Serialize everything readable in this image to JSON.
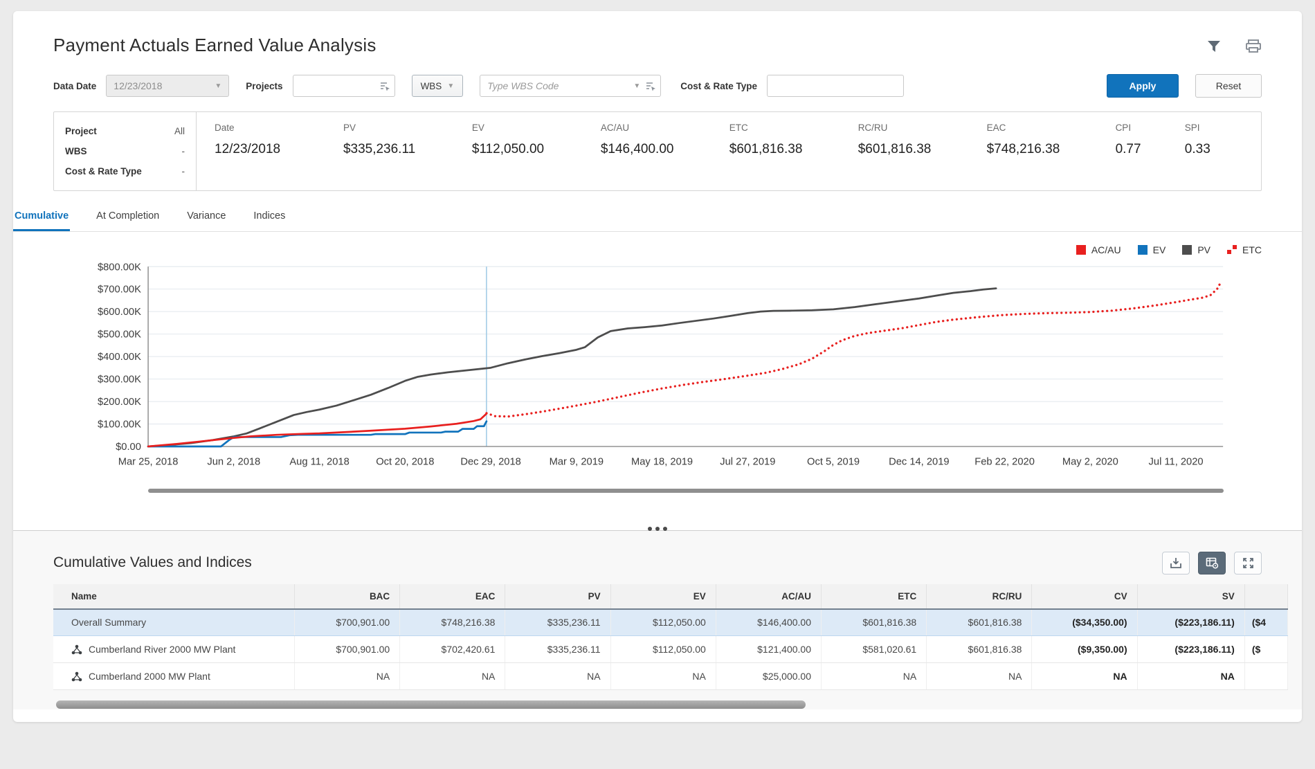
{
  "header": {
    "title": "Payment Actuals Earned Value Analysis"
  },
  "filters": {
    "data_date_label": "Data Date",
    "data_date_value": "12/23/2018",
    "projects_label": "Projects",
    "projects_value": "",
    "wbs_button_label": "WBS",
    "wbs_code_placeholder": "Type WBS Code",
    "cost_rate_label": "Cost & Rate Type",
    "cost_rate_value": "",
    "apply_label": "Apply",
    "reset_label": "Reset"
  },
  "summary_panel": {
    "left_rows": [
      {
        "label": "Project",
        "value": "All"
      },
      {
        "label": "WBS",
        "value": "-"
      },
      {
        "label": "Cost & Rate Type",
        "value": "-"
      }
    ],
    "metrics": [
      {
        "label": "Date",
        "value": "12/23/2018"
      },
      {
        "label": "PV",
        "value": "$335,236.11"
      },
      {
        "label": "EV",
        "value": "$112,050.00"
      },
      {
        "label": "AC/AU",
        "value": "$146,400.00"
      },
      {
        "label": "ETC",
        "value": "$601,816.38"
      },
      {
        "label": "RC/RU",
        "value": "$601,816.38"
      },
      {
        "label": "EAC",
        "value": "$748,216.38"
      },
      {
        "label": "CPI",
        "value": "0.77"
      },
      {
        "label": "SPI",
        "value": "0.33"
      }
    ]
  },
  "tabs": [
    {
      "label": "Cumulative",
      "active": true
    },
    {
      "label": "At Completion",
      "active": false
    },
    {
      "label": "Variance",
      "active": false
    },
    {
      "label": "Indices",
      "active": false
    }
  ],
  "chart_data": {
    "type": "line",
    "title": "Cumulative earned value curves",
    "ylabel": "",
    "xlabel": "",
    "ylim": [
      0,
      800000
    ],
    "values_unit": "USD thousands (K)",
    "grid": true,
    "legend_position": "top-right",
    "y_tick_labels": [
      "$800.00K",
      "$700.00K",
      "$600.00K",
      "$500.00K",
      "$400.00K",
      "$300.00K",
      "$200.00K",
      "$100.00K",
      "$0.00"
    ],
    "x_tick_labels": [
      "Mar 25, 2018",
      "Jun 2, 2018",
      "Aug 11, 2018",
      "Oct 20, 2018",
      "Dec 29, 2018",
      "Mar 9, 2019",
      "May 18, 2019",
      "Jul 27, 2019",
      "Oct 5, 2019",
      "Dec 14, 2019",
      "Feb 22, 2020",
      "May 2, 2020",
      "Jul 11, 2020"
    ],
    "x_unit": "tick index (ticks are 70 days apart)",
    "x_max": 12.55,
    "data_date_x": 3.95,
    "legend": [
      {
        "name": "AC/AU",
        "color": "#e8201f",
        "style": "solid"
      },
      {
        "name": "EV",
        "color": "#1173bc",
        "style": "solid"
      },
      {
        "name": "PV",
        "color": "#4d4d4d",
        "style": "solid"
      },
      {
        "name": "ETC",
        "color": "#e8201f",
        "style": "dotted"
      }
    ],
    "series": [
      {
        "name": "PV",
        "color": "#4d4d4d",
        "style": "solid",
        "points": [
          [
            0,
            0
          ],
          [
            0.25,
            7
          ],
          [
            0.5,
            15
          ],
          [
            0.75,
            28
          ],
          [
            1,
            45
          ],
          [
            1.15,
            58
          ],
          [
            1.3,
            80
          ],
          [
            1.5,
            110
          ],
          [
            1.7,
            140
          ],
          [
            1.85,
            153
          ],
          [
            2,
            164
          ],
          [
            2.2,
            182
          ],
          [
            2.4,
            206
          ],
          [
            2.6,
            230
          ],
          [
            2.8,
            260
          ],
          [
            3,
            292
          ],
          [
            3.15,
            310
          ],
          [
            3.3,
            320
          ],
          [
            3.5,
            330
          ],
          [
            3.75,
            340
          ],
          [
            4,
            350
          ],
          [
            4.2,
            370
          ],
          [
            4.4,
            387
          ],
          [
            4.6,
            402
          ],
          [
            4.8,
            415
          ],
          [
            5,
            430
          ],
          [
            5.1,
            442
          ],
          [
            5.25,
            485
          ],
          [
            5.4,
            513
          ],
          [
            5.6,
            525
          ],
          [
            5.8,
            531
          ],
          [
            6,
            538
          ],
          [
            6.2,
            549
          ],
          [
            6.4,
            559
          ],
          [
            6.6,
            569
          ],
          [
            6.8,
            581
          ],
          [
            7,
            593
          ],
          [
            7.15,
            600
          ],
          [
            7.3,
            603
          ],
          [
            7.5,
            604
          ],
          [
            7.75,
            606
          ],
          [
            8,
            610
          ],
          [
            8.25,
            620
          ],
          [
            8.5,
            633
          ],
          [
            8.75,
            646
          ],
          [
            9,
            658
          ],
          [
            9.2,
            671
          ],
          [
            9.4,
            683
          ],
          [
            9.6,
            691
          ],
          [
            9.75,
            698
          ],
          [
            9.9,
            703
          ]
        ]
      },
      {
        "name": "AC/AU",
        "color": "#e8201f",
        "style": "solid",
        "points": [
          [
            0,
            0
          ],
          [
            0.3,
            10
          ],
          [
            0.6,
            22
          ],
          [
            0.9,
            34
          ],
          [
            1,
            38
          ],
          [
            1.2,
            45
          ],
          [
            1.5,
            52
          ],
          [
            1.8,
            56
          ],
          [
            2,
            58
          ],
          [
            2.3,
            64
          ],
          [
            2.6,
            70
          ],
          [
            3,
            79
          ],
          [
            3.3,
            89
          ],
          [
            3.6,
            101
          ],
          [
            3.8,
            113
          ],
          [
            3.88,
            121
          ],
          [
            3.95,
            146
          ]
        ]
      },
      {
        "name": "EV",
        "color": "#1173bc",
        "style": "solid",
        "points": [
          [
            0,
            0
          ],
          [
            0.85,
            0
          ],
          [
            0.95,
            30
          ],
          [
            1,
            42
          ],
          [
            1.55,
            42
          ],
          [
            1.65,
            50
          ],
          [
            1.75,
            52
          ],
          [
            2.6,
            52
          ],
          [
            2.65,
            55
          ],
          [
            3,
            55
          ],
          [
            3.05,
            62
          ],
          [
            3.42,
            62
          ],
          [
            3.47,
            66
          ],
          [
            3.62,
            66
          ],
          [
            3.67,
            78
          ],
          [
            3.8,
            78
          ],
          [
            3.84,
            90
          ],
          [
            3.92,
            90
          ],
          [
            3.95,
            112
          ]
        ]
      },
      {
        "name": "ETC",
        "color": "#e8201f",
        "style": "dotted",
        "points": [
          [
            3.95,
            148
          ],
          [
            4.05,
            135
          ],
          [
            4.2,
            133
          ],
          [
            4.4,
            143
          ],
          [
            4.6,
            155
          ],
          [
            4.8,
            168
          ],
          [
            5,
            182
          ],
          [
            5.25,
            200
          ],
          [
            5.5,
            220
          ],
          [
            5.75,
            240
          ],
          [
            6,
            258
          ],
          [
            6.25,
            274
          ],
          [
            6.5,
            288
          ],
          [
            6.75,
            301
          ],
          [
            7,
            315
          ],
          [
            7.2,
            327
          ],
          [
            7.4,
            344
          ],
          [
            7.6,
            366
          ],
          [
            7.75,
            390
          ],
          [
            7.9,
            425
          ],
          [
            8,
            452
          ],
          [
            8.1,
            472
          ],
          [
            8.25,
            492
          ],
          [
            8.4,
            504
          ],
          [
            8.6,
            515
          ],
          [
            8.8,
            526
          ],
          [
            9,
            540
          ],
          [
            9.2,
            554
          ],
          [
            9.4,
            564
          ],
          [
            9.6,
            572
          ],
          [
            9.8,
            579
          ],
          [
            10,
            585
          ],
          [
            10.25,
            590
          ],
          [
            10.5,
            593
          ],
          [
            10.75,
            595
          ],
          [
            11,
            598
          ],
          [
            11.25,
            604
          ],
          [
            11.5,
            614
          ],
          [
            11.75,
            627
          ],
          [
            12,
            642
          ],
          [
            12.15,
            652
          ],
          [
            12.3,
            661
          ],
          [
            12.4,
            672
          ],
          [
            12.48,
            700
          ],
          [
            12.53,
            735
          ]
        ]
      }
    ]
  },
  "table": {
    "title": "Cumulative Values and Indices",
    "columns": [
      "Name",
      "BAC",
      "EAC",
      "PV",
      "EV",
      "AC/AU",
      "ETC",
      "RC/RU",
      "CV",
      "SV",
      ""
    ],
    "rows": [
      {
        "name": "Overall Summary",
        "icon": false,
        "selected": true,
        "cells": [
          "$700,901.00",
          "$748,216.38",
          "$335,236.11",
          "$112,050.00",
          "$146,400.00",
          "$601,816.38",
          "$601,816.38",
          "($34,350.00)",
          "($223,186.11)",
          "($4"
        ]
      },
      {
        "name": "Cumberland River 2000 MW Plant",
        "icon": true,
        "selected": false,
        "cells": [
          "$700,901.00",
          "$702,420.61",
          "$335,236.11",
          "$112,050.00",
          "$121,400.00",
          "$581,020.61",
          "$601,816.38",
          "($9,350.00)",
          "($223,186.11)",
          "($"
        ]
      },
      {
        "name": "Cumberland 2000 MW Plant",
        "icon": true,
        "selected": false,
        "cells": [
          "NA",
          "NA",
          "NA",
          "NA",
          "$25,000.00",
          "NA",
          "NA",
          "NA",
          "NA",
          ""
        ]
      }
    ]
  }
}
